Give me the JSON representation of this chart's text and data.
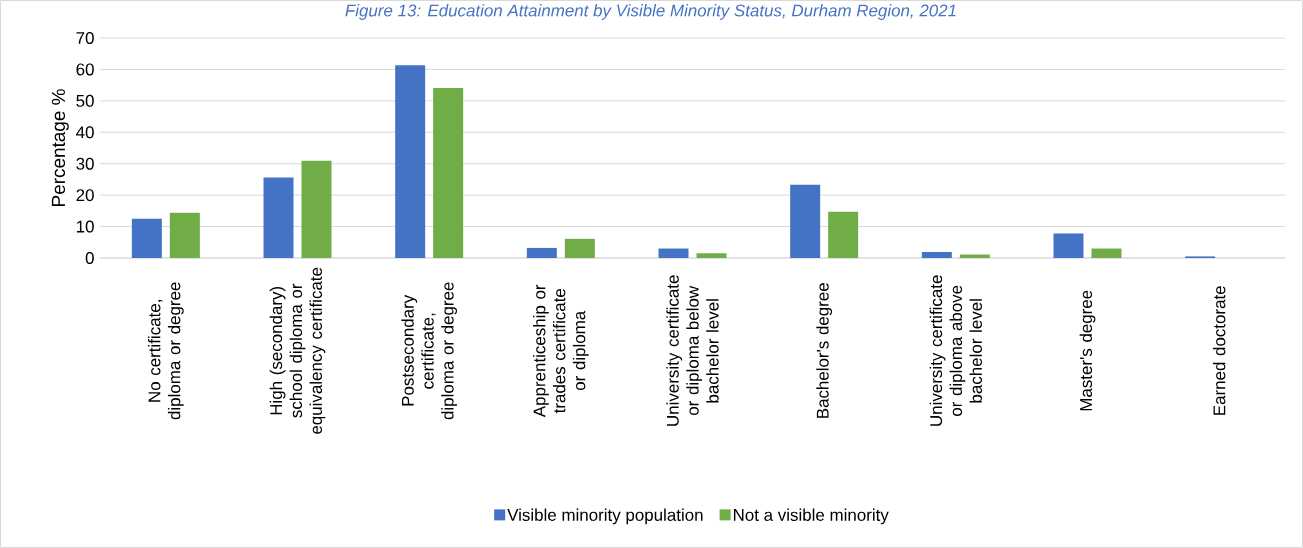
{
  "chart_data": {
    "type": "bar",
    "title": "Figure 13: Education Attainment by Visible Minority Status, Durham Region, 2021",
    "ylabel": "Percentage %",
    "categories": [
      "No certificate, diploma or degree",
      "High (secondary) school diploma or equivalency certificate",
      "Postsecondary certificate, diploma or degree",
      "Apprenticeship or trades certificate or diploma",
      "University certificate or diploma below bachelor level",
      "Bachelor's degree",
      "University certificate or diploma above bachelor level",
      "Master's degree",
      "Earned doctorate"
    ],
    "series": [
      {
        "name": "Visible minority population",
        "color": "#4472c4",
        "values": [
          12.5,
          25.6,
          61.3,
          3.2,
          3.0,
          23.3,
          1.9,
          7.8,
          0.5
        ]
      },
      {
        "name": "Not a visible minority",
        "color": "#70ad47",
        "values": [
          14.4,
          30.9,
          54.1,
          6.1,
          1.5,
          14.7,
          1.1,
          3.0,
          null
        ]
      }
    ],
    "ylim": [
      0,
      70
    ],
    "yticks": [
      0,
      10,
      20,
      30,
      40,
      50,
      60,
      70
    ],
    "grid": "y",
    "legend": "bottom"
  }
}
